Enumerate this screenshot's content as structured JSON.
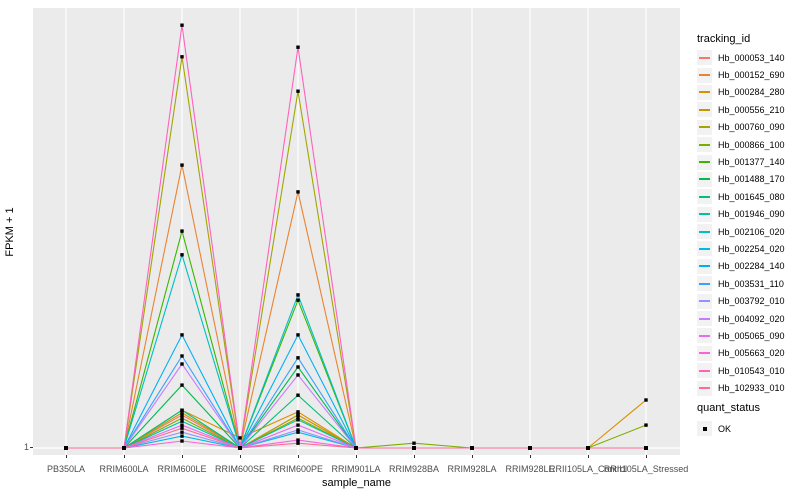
{
  "chart": {
    "y_axis": {
      "label": "FPKM + 1",
      "ticks": [
        "1"
      ]
    },
    "x_axis": {
      "label": "sample_name"
    },
    "legend": {
      "tracking_title": "tracking_id",
      "quant_title": "quant_status",
      "quant_items": [
        {
          "label": "OK",
          "marker": "black-square"
        }
      ]
    },
    "panel_color": "#EBEBEB",
    "gridline_color": "#FFFFFF",
    "legend_key_color": "#F2F2F2",
    "tick_text_color": "#4D4D4D",
    "point_color": "#000000"
  },
  "chart_data": {
    "type": "line",
    "title": "",
    "xlabel": "sample_name",
    "ylabel": "FPKM + 1",
    "y_tick_labels": [
      "1"
    ],
    "values_unit": "relative peak height above baseline (fraction of panel height); y axis shows only the tick '1' at the baseline, absolute FPKM values are not labeled in the image",
    "legend_position": "right",
    "grid": "vertical major gridlines per sample + horizontal gridline at y=1",
    "point_marker": {
      "shape": "square",
      "color": "#000000",
      "legend_label": "OK"
    },
    "categories": [
      "PB350LA",
      "RRIM600LA",
      "RRIM600LE",
      "RRIM600SE",
      "RRIM600PE",
      "RRIM901LA",
      "RRIM928BA",
      "RRIM928LA",
      "RRIM928LE",
      "RRII105LA_Control",
      "RRII105LA_Stressed"
    ],
    "series": [
      {
        "name": "Hb_000053_140",
        "color": "#F8766D",
        "values": [
          0,
          0,
          0.075,
          0,
          0.075,
          0,
          0,
          0,
          0,
          0,
          0
        ]
      },
      {
        "name": "Hb_000152_690",
        "color": "#EA8331",
        "values": [
          0,
          0,
          0.643,
          0,
          0.582,
          0,
          0,
          0,
          0,
          0,
          0
        ]
      },
      {
        "name": "Hb_000284_280",
        "color": "#D89000",
        "values": [
          0,
          0,
          0.086,
          0.023,
          0.082,
          0,
          0,
          0,
          0,
          0,
          0.109
        ]
      },
      {
        "name": "Hb_000556_210",
        "color": "#C09B00",
        "values": [
          0,
          0,
          0.08,
          0,
          0.075,
          0,
          0,
          0,
          0,
          0,
          0
        ]
      },
      {
        "name": "Hb_000760_090",
        "color": "#A3A500",
        "values": [
          0,
          0,
          0.889,
          0,
          0.811,
          0,
          0,
          0,
          0,
          0,
          0
        ]
      },
      {
        "name": "Hb_000866_100",
        "color": "#7CAE00",
        "values": [
          0,
          0,
          0.068,
          0,
          0.068,
          0,
          0.011,
          0,
          0,
          0,
          0.052
        ]
      },
      {
        "name": "Hb_001377_140",
        "color": "#39B600",
        "values": [
          0,
          0,
          0.493,
          0,
          0.336,
          0,
          0,
          0,
          0,
          0,
          0
        ]
      },
      {
        "name": "Hb_001488_170",
        "color": "#00BB4E",
        "values": [
          0,
          0,
          0.143,
          0,
          0.184,
          0,
          0,
          0,
          0,
          0,
          0
        ]
      },
      {
        "name": "Hb_001645_080",
        "color": "#00BF7D",
        "values": [
          0,
          0,
          0.086,
          0,
          0.12,
          0,
          0,
          0,
          0,
          0,
          0
        ]
      },
      {
        "name": "Hb_001946_090",
        "color": "#00C1A3",
        "values": [
          0,
          0,
          0.061,
          0,
          0.064,
          0,
          0,
          0,
          0,
          0,
          0
        ]
      },
      {
        "name": "Hb_002106_020",
        "color": "#00BFC4",
        "values": [
          0,
          0,
          0.439,
          0,
          0.348,
          0,
          0,
          0,
          0,
          0,
          0
        ]
      },
      {
        "name": "Hb_002254_020",
        "color": "#00BAE0",
        "values": [
          0,
          0,
          0.027,
          0,
          0.036,
          0,
          0,
          0,
          0,
          0,
          0
        ]
      },
      {
        "name": "Hb_002284_140",
        "color": "#00B0F6",
        "values": [
          0,
          0,
          0.257,
          0,
          0.257,
          0,
          0,
          0,
          0,
          0,
          0
        ]
      },
      {
        "name": "Hb_003531_110",
        "color": "#35A2FF",
        "values": [
          0,
          0,
          0.209,
          0,
          0.205,
          0,
          0,
          0,
          0,
          0,
          0
        ]
      },
      {
        "name": "Hb_003792_010",
        "color": "#9590FF",
        "values": [
          0,
          0,
          0.036,
          0,
          0.041,
          0,
          0,
          0,
          0,
          0,
          0
        ]
      },
      {
        "name": "Hb_004092_020",
        "color": "#C77CFF",
        "values": [
          0,
          0,
          0.191,
          0,
          0.166,
          0,
          0,
          0,
          0,
          0,
          0
        ]
      },
      {
        "name": "Hb_005065_090",
        "color": "#E76BF3",
        "values": [
          0,
          0,
          0.052,
          0,
          0.052,
          0,
          0,
          0,
          0,
          0,
          0
        ]
      },
      {
        "name": "Hb_005663_020",
        "color": "#FA62DB",
        "values": [
          0,
          0,
          0.016,
          0,
          0.018,
          0,
          0,
          0,
          0,
          0,
          0
        ]
      },
      {
        "name": "Hb_010543_010",
        "color": "#FF62BC",
        "values": [
          0,
          0,
          0.961,
          0,
          0.911,
          0,
          0,
          0,
          0,
          0,
          0
        ]
      },
      {
        "name": "Hb_102933_010",
        "color": "#FF6A98",
        "values": [
          0,
          0,
          0.045,
          0,
          0.011,
          0,
          0,
          0,
          0,
          0,
          0
        ]
      }
    ]
  }
}
